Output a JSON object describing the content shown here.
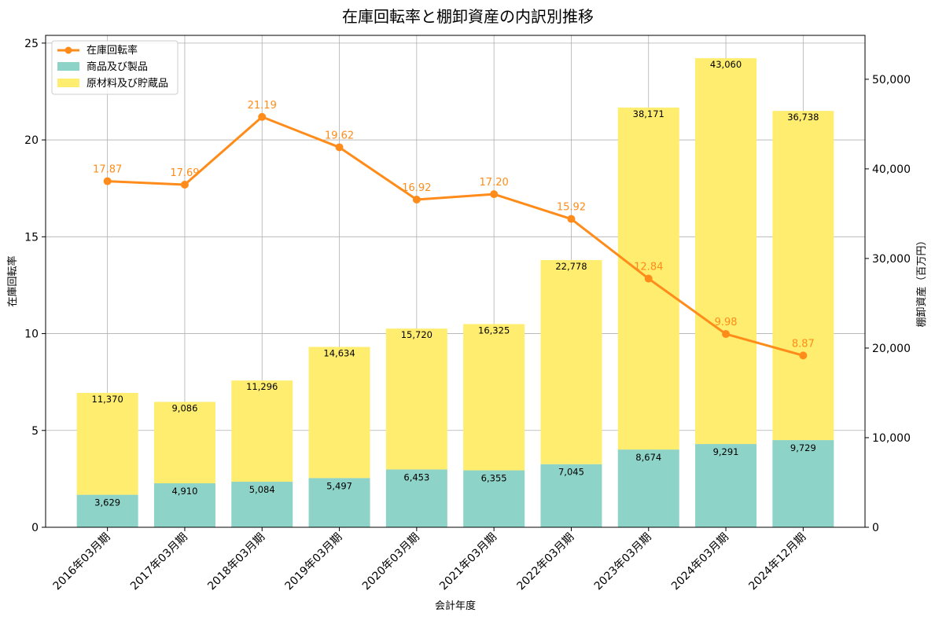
{
  "chart_data": {
    "type": "bar",
    "title": "在庫回転率と棚卸資産の内訳別推移",
    "xlabel": "会計年度",
    "ylabel_left": "在庫回転率",
    "ylabel_right": "棚卸資産（百万円）",
    "categories": [
      "2016年03月期",
      "2017年03月期",
      "2018年03月期",
      "2019年03月期",
      "2020年03月期",
      "2021年03月期",
      "2022年03月期",
      "2023年03月期",
      "2024年03月期",
      "2024年12月期"
    ],
    "bar_series": [
      {
        "name": "商品及び製品",
        "color": "#8dd3c7",
        "values": [
          3629,
          4910,
          5084,
          5497,
          6453,
          6355,
          7045,
          8674,
          9291,
          9729
        ],
        "labels": [
          "3,629",
          "4,910",
          "5,084",
          "5,497",
          "6,453",
          "6,355",
          "7,045",
          "8,674",
          "9,291",
          "9,729"
        ]
      },
      {
        "name": "原材料及び貯蔵品",
        "color": "#ffed6f",
        "values": [
          11370,
          9086,
          11296,
          14634,
          15720,
          16325,
          22778,
          38171,
          43060,
          36738
        ],
        "labels": [
          "11,370",
          "9,086",
          "11,296",
          "14,634",
          "15,720",
          "16,325",
          "22,778",
          "38,171",
          "43,060",
          "36,738"
        ]
      }
    ],
    "line_series": {
      "name": "在庫回転率",
      "color": "#ff8c1a",
      "values": [
        17.87,
        17.69,
        21.19,
        19.62,
        16.92,
        17.2,
        15.92,
        12.84,
        9.98,
        8.87
      ],
      "labels": [
        "17.87",
        "17.69",
        "21.19",
        "19.62",
        "16.92",
        "17.20",
        "15.92",
        "12.84",
        "9.98",
        "8.87"
      ]
    },
    "ylim_left": [
      0,
      25.4
    ],
    "ylim_right": [
      0,
      54900
    ],
    "yticks_left": [
      0,
      5,
      10,
      15,
      20,
      25
    ],
    "yticks_left_labels": [
      "0",
      "5",
      "10",
      "15",
      "20",
      "25"
    ],
    "yticks_right": [
      0,
      10000,
      20000,
      30000,
      40000,
      50000
    ],
    "yticks_right_labels": [
      "0",
      "10,000",
      "20,000",
      "30,000",
      "40,000",
      "50,000"
    ],
    "grid": true,
    "legend_position": "upper-left"
  }
}
